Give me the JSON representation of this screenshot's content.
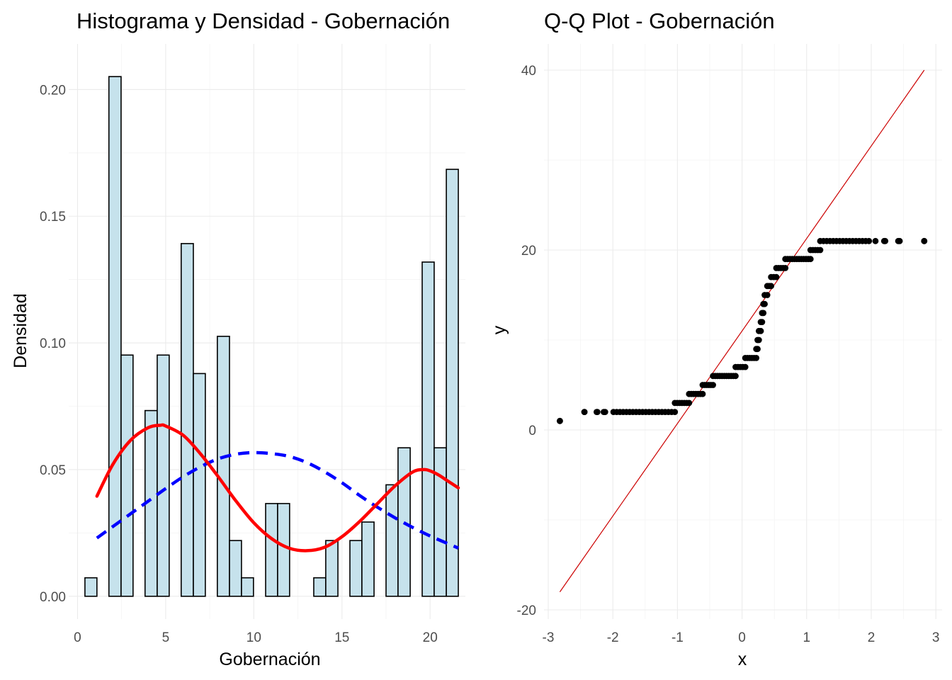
{
  "chart_data": [
    {
      "type": "bar",
      "title": "Histograma y Densidad - Gobernación",
      "xlabel": "Gobernación",
      "ylabel": "Densidad",
      "xlim": [
        -0.5,
        22.0
      ],
      "ylim": [
        -0.009,
        0.218
      ],
      "xticks": [
        0,
        5,
        10,
        15,
        20
      ],
      "yticks": [
        0.0,
        0.05,
        0.1,
        0.15,
        0.2
      ],
      "ytick_labels": [
        "0.00",
        "0.05",
        "0.10",
        "0.15",
        "0.20"
      ],
      "grid": true,
      "bin_width": 0.6833,
      "bins": [
        {
          "x0": 0.42,
          "x1": 1.1,
          "density": 0.0073
        },
        {
          "x0": 1.78,
          "x1": 2.47,
          "density": 0.2051
        },
        {
          "x0": 2.47,
          "x1": 3.15,
          "density": 0.0952
        },
        {
          "x0": 3.83,
          "x1": 4.52,
          "density": 0.0733
        },
        {
          "x0": 4.52,
          "x1": 5.2,
          "density": 0.0952
        },
        {
          "x0": 5.88,
          "x1": 6.57,
          "density": 0.1392
        },
        {
          "x0": 6.57,
          "x1": 7.25,
          "density": 0.0879
        },
        {
          "x0": 7.93,
          "x1": 8.62,
          "density": 0.1026
        },
        {
          "x0": 8.62,
          "x1": 9.3,
          "density": 0.022
        },
        {
          "x0": 9.3,
          "x1": 9.98,
          "density": 0.0073
        },
        {
          "x0": 10.67,
          "x1": 11.35,
          "density": 0.0366
        },
        {
          "x0": 11.35,
          "x1": 12.03,
          "density": 0.0366
        },
        {
          "x0": 13.4,
          "x1": 14.08,
          "density": 0.0073
        },
        {
          "x0": 14.08,
          "x1": 14.77,
          "density": 0.022
        },
        {
          "x0": 15.45,
          "x1": 16.13,
          "density": 0.022
        },
        {
          "x0": 16.13,
          "x1": 16.82,
          "density": 0.0293
        },
        {
          "x0": 17.5,
          "x1": 18.18,
          "density": 0.044
        },
        {
          "x0": 18.18,
          "x1": 18.87,
          "density": 0.0586
        },
        {
          "x0": 19.55,
          "x1": 20.23,
          "density": 0.1319
        },
        {
          "x0": 20.23,
          "x1": 20.92,
          "density": 0.0586
        },
        {
          "x0": 20.92,
          "x1": 21.6,
          "density": 0.1685
        }
      ],
      "bar_fill": "#c6e2ec",
      "bar_stroke": "#000000",
      "kde_curve": {
        "color": "#ff0000",
        "x": [
          1.1,
          2,
          3,
          4,
          4.7,
          5,
          6,
          7,
          8,
          9,
          10,
          11,
          12,
          13,
          14,
          15,
          16,
          17,
          18,
          19,
          19.6,
          20,
          20.5,
          21,
          21.6
        ],
        "y": [
          0.0395,
          0.052,
          0.0615,
          0.0665,
          0.0675,
          0.0672,
          0.0635,
          0.056,
          0.047,
          0.0375,
          0.029,
          0.0228,
          0.019,
          0.018,
          0.0193,
          0.0235,
          0.0295,
          0.0365,
          0.0435,
          0.049,
          0.05,
          0.0495,
          0.0478,
          0.0455,
          0.0428
        ]
      },
      "normal_curve": {
        "color": "#0000ff",
        "x": [
          1.1,
          2,
          3,
          4,
          5,
          6,
          7,
          8,
          9,
          10,
          11,
          12,
          13,
          14,
          15,
          16,
          17,
          18,
          19,
          20,
          21,
          21.6
        ],
        "y": [
          0.023,
          0.0275,
          0.0325,
          0.0375,
          0.0425,
          0.0472,
          0.0512,
          0.0543,
          0.0561,
          0.0567,
          0.0563,
          0.0552,
          0.0528,
          0.0492,
          0.0448,
          0.0398,
          0.0352,
          0.031,
          0.0272,
          0.0238,
          0.0208,
          0.019
        ]
      }
    },
    {
      "type": "scatter",
      "title": "Q-Q Plot - Gobernación",
      "xlabel": "x",
      "ylabel": "y",
      "xlim": [
        -3.1,
        3.1
      ],
      "ylim": [
        -21.0,
        43.0
      ],
      "xticks": [
        -3,
        -2,
        -1,
        0,
        1,
        2,
        3
      ],
      "yticks": [
        -20,
        0,
        20,
        40
      ],
      "grid": true,
      "point_color": "#000000",
      "reference_line": {
        "color": "#cc0000",
        "x": [
          -2.82,
          2.82
        ],
        "y": [
          -18.0,
          40.0
        ]
      },
      "sample_value_runs": [
        {
          "y": 1,
          "from_x": -2.82,
          "to_x": -2.82
        },
        {
          "y": 2,
          "from_x": -2.44,
          "to_x": -1.04
        },
        {
          "y": 3,
          "from_x": -1.04,
          "to_x": -0.82
        },
        {
          "y": 4,
          "from_x": -0.82,
          "to_x": -0.61
        },
        {
          "y": 5,
          "from_x": -0.61,
          "to_x": -0.45
        },
        {
          "y": 6,
          "from_x": -0.45,
          "to_x": -0.1
        },
        {
          "y": 7,
          "from_x": -0.1,
          "to_x": 0.05
        },
        {
          "y": 8,
          "from_x": 0.05,
          "to_x": 0.22
        },
        {
          "y": 9,
          "from_x": 0.22,
          "to_x": 0.24
        },
        {
          "y": 10,
          "from_x": 0.24,
          "to_x": 0.26
        },
        {
          "y": 11,
          "from_x": 0.26,
          "to_x": 0.29
        },
        {
          "y": 12,
          "from_x": 0.29,
          "to_x": 0.31
        },
        {
          "y": 13,
          "from_x": 0.31,
          "to_x": 0.33
        },
        {
          "y": 14,
          "from_x": 0.33,
          "to_x": 0.35
        },
        {
          "y": 15,
          "from_x": 0.35,
          "to_x": 0.39
        },
        {
          "y": 16,
          "from_x": 0.39,
          "to_x": 0.45
        },
        {
          "y": 17,
          "from_x": 0.45,
          "to_x": 0.53
        },
        {
          "y": 18,
          "from_x": 0.53,
          "to_x": 0.67
        },
        {
          "y": 19,
          "from_x": 0.67,
          "to_x": 1.06
        },
        {
          "y": 20,
          "from_x": 1.06,
          "to_x": 1.21
        },
        {
          "y": 21,
          "from_x": 1.21,
          "to_x": 2.82
        }
      ]
    }
  ]
}
